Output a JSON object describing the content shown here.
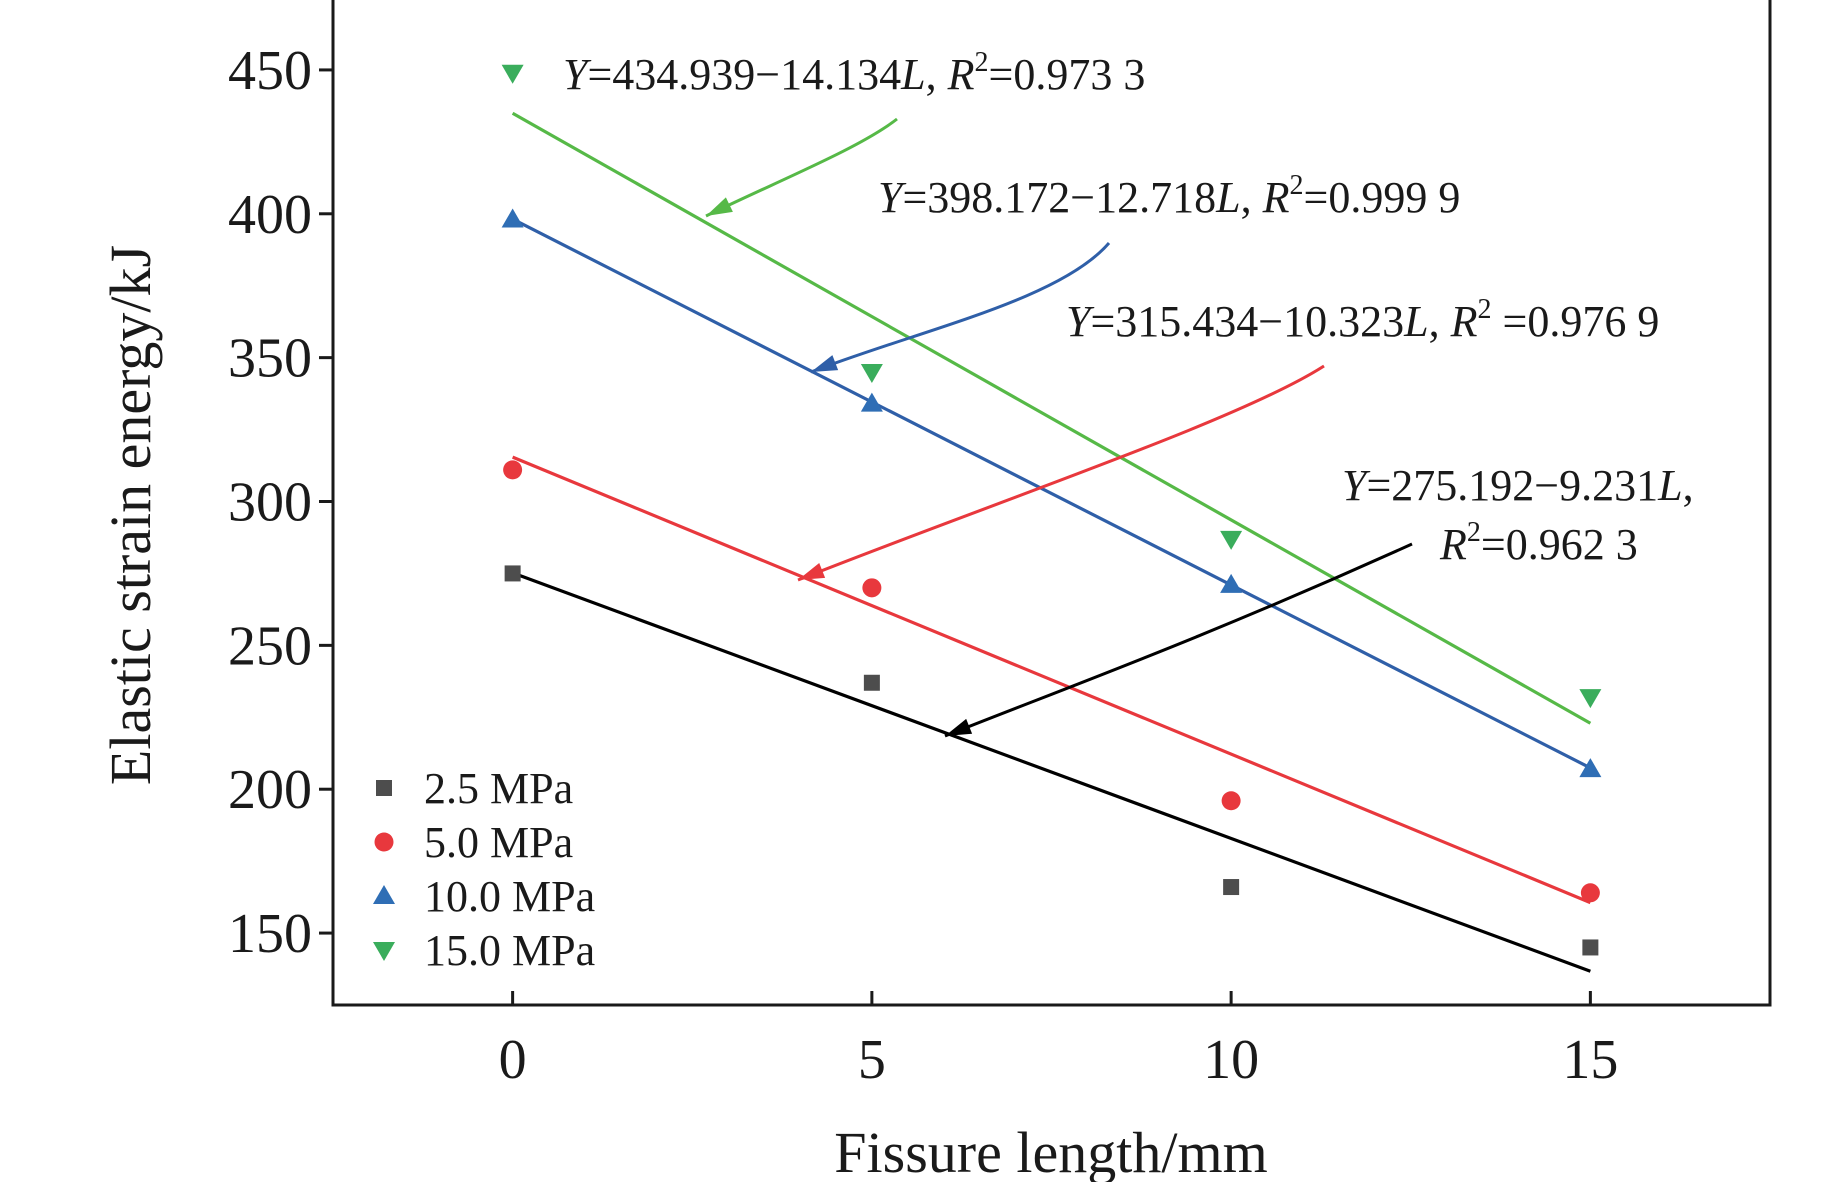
{
  "chart_data": {
    "type": "scatter",
    "title": "",
    "xlabel": "Fissure length/mm",
    "ylabel": "Elastic strain energy/kJ",
    "xlim": [
      -2.5,
      17.5
    ],
    "ylim": [
      125,
      475
    ],
    "xticks": [
      0,
      5,
      10,
      15
    ],
    "yticks": [
      150,
      200,
      250,
      300,
      350,
      400,
      450
    ],
    "x": [
      0,
      5,
      10,
      15
    ],
    "grid": false,
    "legend_position": "bottom-left",
    "series": [
      {
        "name": "2.5 MPa",
        "marker": "square",
        "color": "#4d4d4d",
        "line_color": "#000000",
        "values": [
          275,
          237,
          166,
          145
        ],
        "fit": {
          "intercept": 275.192,
          "slope": -9.231
        },
        "equation": {
          "y": "Y",
          "eq1": "=275.192−9.231",
          "l": "L",
          "comma": ",",
          "r": "R",
          "sup": "2",
          "eq2": "=0.962 3"
        }
      },
      {
        "name": "5.0 MPa",
        "marker": "circle",
        "color": "#e8383d",
        "line_color": "#e8383d",
        "values": [
          311,
          270,
          196,
          164
        ],
        "fit": {
          "intercept": 315.434,
          "slope": -10.323
        },
        "equation": {
          "y": "Y",
          "eq1": "=315.434−10.323",
          "l": "L",
          "comma": ",",
          "r": "R",
          "sup": "2",
          "eq2": " =0.976 9"
        }
      },
      {
        "name": "10.0 MPa",
        "marker": "triangle-up",
        "color": "#2f6eb5",
        "line_color": "#2f5fa8",
        "values": [
          398,
          334,
          271,
          207
        ],
        "fit": {
          "intercept": 398.172,
          "slope": -12.718
        },
        "equation": {
          "y": "Y",
          "eq1": "=398.172−12.718",
          "l": "L",
          "comma": ",",
          "r": "R",
          "sup": "2",
          "eq2": "=0.999 9"
        }
      },
      {
        "name": "15.0 MPa",
        "marker": "triangle-down",
        "color": "#3aad5c",
        "line_color": "#56b947",
        "values": [
          449,
          345,
          287,
          232
        ],
        "fit": {
          "intercept": 434.939,
          "slope": -14.134
        },
        "equation": {
          "y": "Y",
          "eq1": "=434.939−14.134",
          "l": "L",
          "comma": ",",
          "r": "R",
          "sup": "2",
          "eq2": "=0.973 3"
        }
      }
    ]
  }
}
